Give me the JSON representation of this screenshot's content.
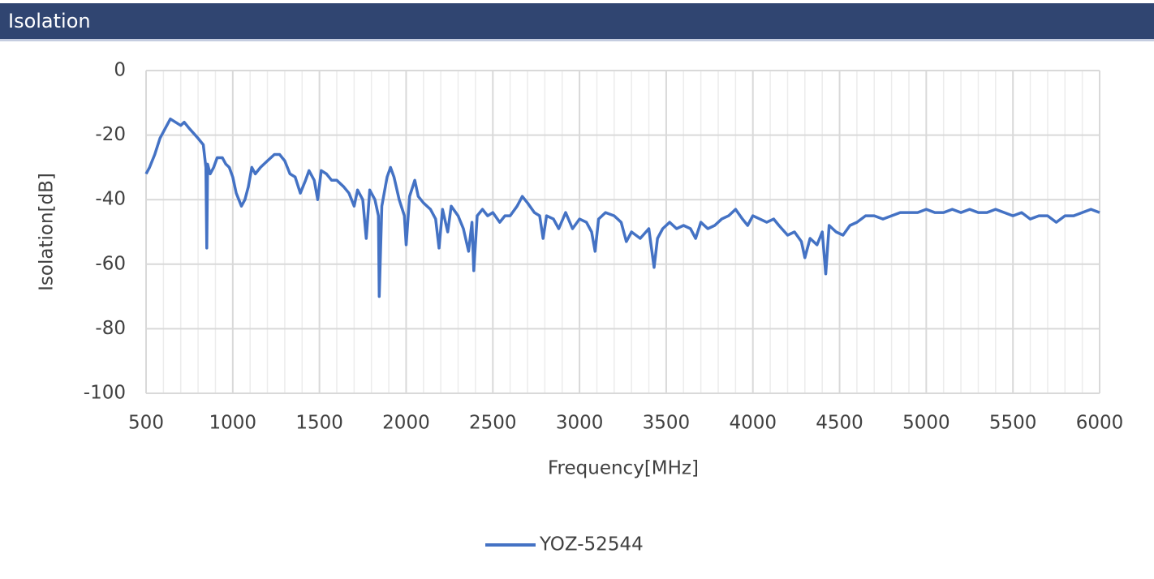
{
  "chart_data": {
    "type": "line",
    "title": "Isolation",
    "x_label": "Frequency[MHz]",
    "y_label": "Isolation[dB]",
    "x": [
      500,
      520,
      550,
      580,
      610,
      640,
      670,
      700,
      720,
      750,
      800,
      830,
      845,
      850,
      855,
      870,
      890,
      910,
      940,
      960,
      980,
      1000,
      1020,
      1050,
      1070,
      1090,
      1110,
      1130,
      1160,
      1200,
      1240,
      1270,
      1300,
      1330,
      1360,
      1390,
      1420,
      1440,
      1470,
      1490,
      1510,
      1540,
      1570,
      1600,
      1640,
      1670,
      1700,
      1720,
      1750,
      1770,
      1790,
      1820,
      1840,
      1845,
      1860,
      1890,
      1910,
      1930,
      1960,
      1990,
      2000,
      2020,
      2050,
      2070,
      2100,
      2140,
      2170,
      2190,
      2210,
      2240,
      2260,
      2300,
      2330,
      2360,
      2380,
      2390,
      2410,
      2440,
      2470,
      2500,
      2540,
      2570,
      2600,
      2640,
      2670,
      2700,
      2740,
      2770,
      2790,
      2810,
      2850,
      2880,
      2920,
      2960,
      3000,
      3040,
      3070,
      3090,
      3110,
      3150,
      3200,
      3240,
      3270,
      3300,
      3350,
      3400,
      3430,
      3450,
      3480,
      3520,
      3560,
      3600,
      3640,
      3670,
      3700,
      3740,
      3780,
      3820,
      3860,
      3900,
      3940,
      3970,
      4000,
      4040,
      4080,
      4120,
      4150,
      4200,
      4240,
      4280,
      4300,
      4330,
      4370,
      4400,
      4420,
      4440,
      4480,
      4520,
      4560,
      4600,
      4650,
      4700,
      4750,
      4800,
      4850,
      4900,
      4950,
      5000,
      5050,
      5100,
      5150,
      5200,
      5250,
      5300,
      5350,
      5400,
      5450,
      5500,
      5550,
      5600,
      5650,
      5700,
      5750,
      5800,
      5850,
      5900,
      5950,
      6000
    ],
    "series": [
      {
        "name": "YOZ-52544",
        "color": "#4472c4",
        "values": [
          -32,
          -30,
          -26,
          -21,
          -18,
          -15,
          -16,
          -17,
          -16,
          -18,
          -21,
          -23,
          -30,
          -55,
          -29,
          -32,
          -30,
          -27,
          -27,
          -29,
          -30,
          -33,
          -38,
          -42,
          -40,
          -36,
          -30,
          -32,
          -30,
          -28,
          -26,
          -26,
          -28,
          -32,
          -33,
          -38,
          -34,
          -31,
          -34,
          -40,
          -31,
          -32,
          -34,
          -34,
          -36,
          -38,
          -42,
          -37,
          -40,
          -52,
          -37,
          -40,
          -45,
          -70,
          -42,
          -33,
          -30,
          -33,
          -40,
          -45,
          -54,
          -39,
          -34,
          -39,
          -41,
          -43,
          -46,
          -55,
          -43,
          -50,
          -42,
          -45,
          -49,
          -56,
          -47,
          -62,
          -45,
          -43,
          -45,
          -44,
          -47,
          -45,
          -45,
          -42,
          -39,
          -41,
          -44,
          -45,
          -52,
          -45,
          -46,
          -49,
          -44,
          -49,
          -46,
          -47,
          -50,
          -56,
          -46,
          -44,
          -45,
          -47,
          -53,
          -50,
          -52,
          -49,
          -61,
          -52,
          -49,
          -47,
          -49,
          -48,
          -49,
          -52,
          -47,
          -49,
          -48,
          -46,
          -45,
          -43,
          -46,
          -48,
          -45,
          -46,
          -47,
          -46,
          -48,
          -51,
          -50,
          -53,
          -58,
          -52,
          -54,
          -50,
          -63,
          -48,
          -50,
          -51,
          -48,
          -47,
          -45,
          -45,
          -46,
          -45,
          -44,
          -44,
          -44,
          -43,
          -44,
          -44,
          -43,
          -44,
          -43,
          -44,
          -44,
          -43,
          -44,
          -45,
          -44,
          -46,
          -45,
          -45,
          -47,
          -45,
          -45,
          -44,
          -43,
          -44
        ]
      }
    ],
    "xlim": [
      500,
      6000
    ],
    "ylim": [
      -100,
      0
    ],
    "xticks": [
      500,
      1000,
      1500,
      2000,
      2500,
      3000,
      3500,
      4000,
      4500,
      5000,
      5500,
      6000
    ],
    "x_minor_ticks": [
      600,
      700,
      800,
      900,
      1100,
      1200,
      1300,
      1400,
      1600,
      1700,
      1800,
      1900,
      2100,
      2200,
      2300,
      2400,
      2600,
      2700,
      2800,
      2900,
      3100,
      3200,
      3300,
      3400,
      3600,
      3700,
      3800,
      3900,
      4100,
      4200,
      4300,
      4400,
      4600,
      4700,
      4800,
      4900,
      5100,
      5200,
      5300,
      5400,
      5600,
      5700,
      5800,
      5900
    ],
    "yticks": [
      0,
      -20,
      -40,
      -60,
      -80,
      -100
    ],
    "grid": true,
    "legend": "bottom"
  }
}
